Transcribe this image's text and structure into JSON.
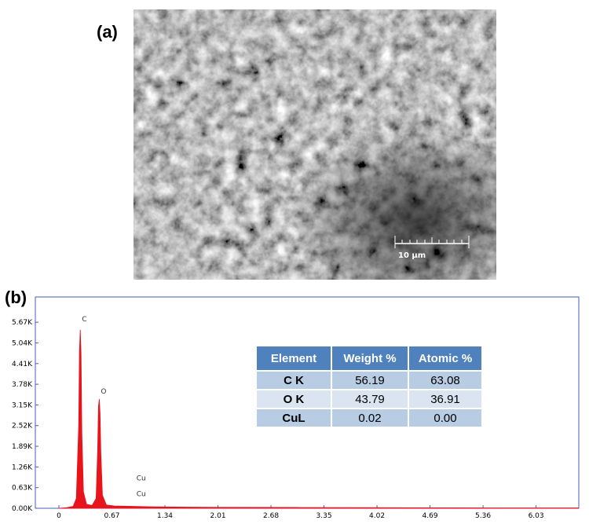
{
  "panel_a": {
    "label": "(a)",
    "scale_bar": "10 µm"
  },
  "panel_b": {
    "label": "(b)"
  },
  "chart_data": {
    "type": "area",
    "color": "#e8141c",
    "x": [
      0,
      0.1,
      0.18,
      0.22,
      0.25,
      0.26,
      0.27,
      0.28,
      0.29,
      0.31,
      0.35,
      0.42,
      0.47,
      0.49,
      0.5,
      0.51,
      0.52,
      0.53,
      0.55,
      0.6,
      0.7,
      0.93,
      1.2,
      1.6,
      2.0,
      3.0,
      4.0,
      5.0,
      6.0,
      6.57
    ],
    "values": [
      0,
      20,
      60,
      300,
      2500,
      4800,
      5440,
      4700,
      2300,
      500,
      120,
      90,
      300,
      1800,
      3100,
      3330,
      2900,
      1700,
      400,
      100,
      70,
      60,
      45,
      35,
      30,
      25,
      20,
      15,
      10,
      10
    ],
    "xlim": [
      0,
      6.57
    ],
    "ylim": [
      0,
      6440
    ],
    "xticks": [
      0,
      0.67,
      1.34,
      2.01,
      2.68,
      3.35,
      4.02,
      4.69,
      5.36,
      6.03
    ],
    "yticks": [
      {
        "value": 0,
        "label": "0.00K"
      },
      {
        "value": 630,
        "label": "0.63K"
      },
      {
        "value": 1260,
        "label": "1.26K"
      },
      {
        "value": 1890,
        "label": "1.89K"
      },
      {
        "value": 2520,
        "label": "2.52K"
      },
      {
        "value": 3150,
        "label": "3.15K"
      },
      {
        "value": 3780,
        "label": "3.78K"
      },
      {
        "value": 4410,
        "label": "4.41K"
      },
      {
        "value": 5040,
        "label": "5.04K"
      },
      {
        "value": 5670,
        "label": "5.67K"
      }
    ],
    "annotations": [
      {
        "text": "C",
        "x": 0.29,
        "y": 5700
      },
      {
        "text": "O",
        "x": 0.53,
        "y": 3500
      },
      {
        "text": "Cu",
        "x": 0.98,
        "y": 850
      },
      {
        "text": "Cu",
        "x": 0.98,
        "y": 370
      }
    ]
  },
  "table": {
    "header": [
      "Element",
      "Weight %",
      "Atomic %"
    ],
    "rows": [
      [
        "C K",
        "56.19",
        "63.08"
      ],
      [
        "O K",
        "43.79",
        "36.91"
      ],
      [
        "CuL",
        "0.02",
        "0.00"
      ]
    ]
  }
}
